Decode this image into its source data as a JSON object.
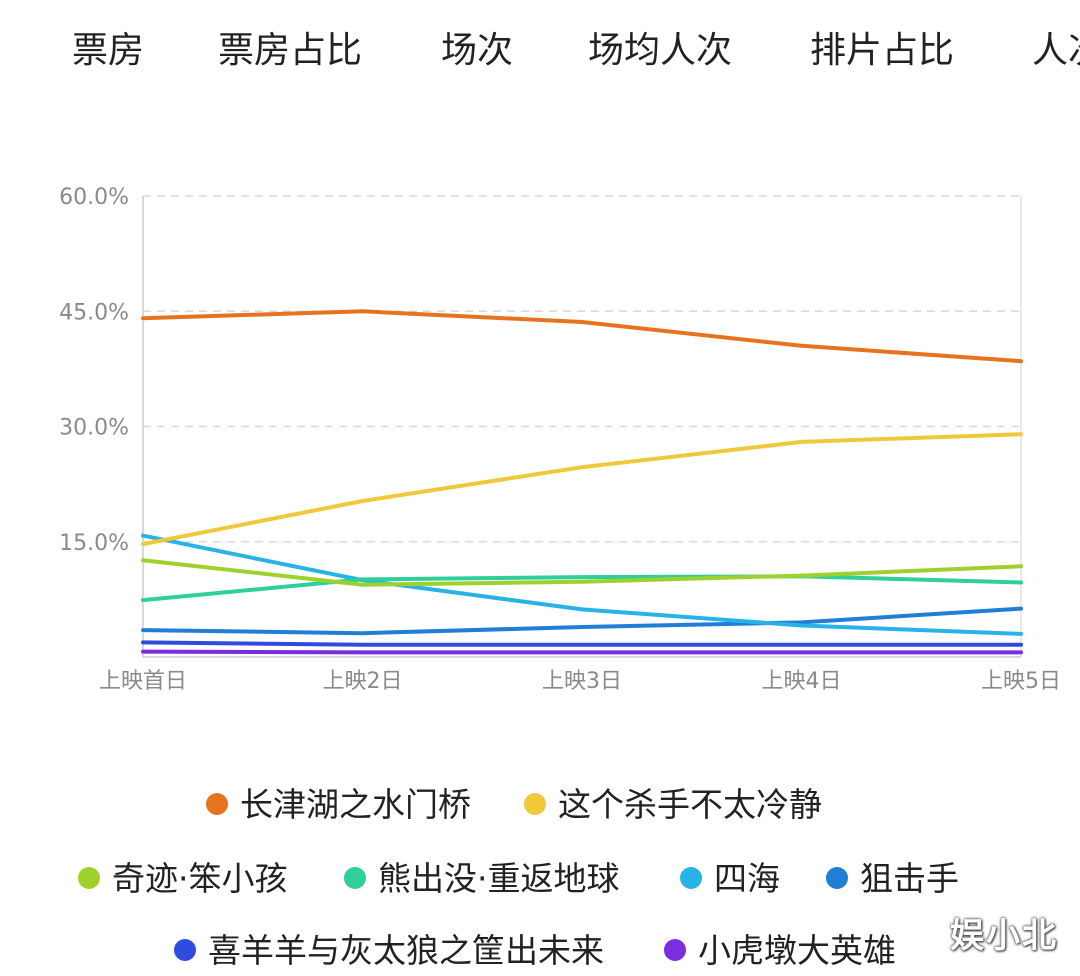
{
  "tabs": [
    {
      "label": "票房",
      "active": false
    },
    {
      "label": "票房占比",
      "active": true
    },
    {
      "label": "场次",
      "active": false
    },
    {
      "label": "场均人次",
      "active": false
    },
    {
      "label": "排片占比",
      "active": false
    },
    {
      "label": "人次",
      "active": false
    }
  ],
  "colors": {
    "accent": "#f27b1a",
    "grid": "#d9d9d9",
    "axis": "#cccccc",
    "tick_text": "#8a8a8a"
  },
  "chart_data": {
    "type": "line",
    "title": "",
    "xlabel": "",
    "ylabel": "",
    "categories": [
      "上映首日",
      "上映2日",
      "上映3日",
      "上映4日",
      "上映5日"
    ],
    "y_ticks": [
      0,
      15,
      30,
      45,
      60
    ],
    "y_tick_labels": [
      "",
      "15.0%",
      "30.0%",
      "45.0%",
      "60.0%"
    ],
    "ylim": [
      0,
      60
    ],
    "grid": true,
    "legend_position": "bottom",
    "series": [
      {
        "name": "长津湖之水门桥",
        "color": "#e8731e",
        "values": [
          44.1,
          45.0,
          43.6,
          40.5,
          38.5
        ]
      },
      {
        "name": "这个杀手不太冷静",
        "color": "#f0c93b",
        "values": [
          14.7,
          20.3,
          24.7,
          28.0,
          29.0
        ]
      },
      {
        "name": "奇迹·笨小孩",
        "color": "#9fd12e",
        "values": [
          12.6,
          9.4,
          9.8,
          10.6,
          11.8
        ]
      },
      {
        "name": "熊出没·重返地球",
        "color": "#2fcf9a",
        "values": [
          7.4,
          10.1,
          10.4,
          10.5,
          9.7
        ]
      },
      {
        "name": "四海",
        "color": "#27b3e8",
        "values": [
          15.8,
          10.0,
          6.2,
          4.1,
          3.0
        ]
      },
      {
        "name": "狙击手",
        "color": "#1f7fd6",
        "values": [
          3.5,
          3.1,
          3.9,
          4.5,
          6.3
        ]
      },
      {
        "name": "喜羊羊与灰太狼之筐出未来",
        "color": "#2f4ce0",
        "values": [
          1.9,
          1.6,
          1.6,
          1.6,
          1.6
        ]
      },
      {
        "name": "小虎墩大英雄",
        "color": "#7a2ee0",
        "values": [
          0.7,
          0.6,
          0.6,
          0.6,
          0.6
        ]
      }
    ]
  },
  "watermark": "娱小北"
}
